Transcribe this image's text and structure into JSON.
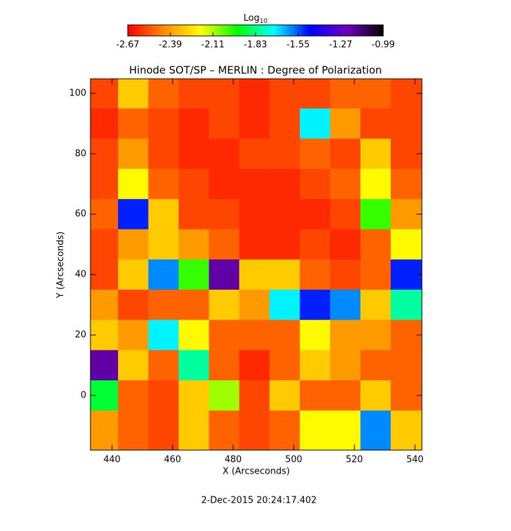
{
  "chart_data": {
    "type": "heatmap",
    "title": "Hinode SOT/SP – MERLIN : Degree of Polarization",
    "xlabel": "X (Arcseconds)",
    "ylabel": "Y (Arcseconds)",
    "footer": "2-Dec-2015 20:24:17.402",
    "colorbar_label": "Log",
    "colorbar_label_sub": "10",
    "colorbar_lim": [
      -2.67,
      -0.99
    ],
    "colorbar_ticks": [
      -2.67,
      -2.39,
      -2.11,
      -1.83,
      -1.55,
      -1.27,
      -0.99
    ],
    "colormap": [
      "#ff0000",
      "#ff8c00",
      "#ffff00",
      "#00ff00",
      "#00ffff",
      "#0000ff",
      "#7000c0",
      "#000000"
    ],
    "xlim": [
      432.9,
      542.3
    ],
    "ylim": [
      -18.1,
      104.8
    ],
    "xticks": [
      440,
      460,
      480,
      500,
      520,
      540
    ],
    "yticks": [
      0,
      20,
      40,
      60,
      80,
      100
    ],
    "x": [
      437,
      447,
      457,
      467,
      477,
      487,
      497,
      507,
      517,
      527,
      537
    ],
    "y": [
      100,
      90,
      80,
      70,
      60,
      50,
      40,
      30,
      20,
      10,
      0,
      -10
    ],
    "z": [
      [
        -2.55,
        -2.3,
        -2.5,
        -2.55,
        -2.55,
        -2.6,
        -2.55,
        -2.55,
        -2.5,
        -2.5,
        -2.55
      ],
      [
        -2.6,
        -2.5,
        -2.55,
        -2.6,
        -2.55,
        -2.6,
        -2.55,
        -1.7,
        -2.4,
        -2.55,
        -2.55
      ],
      [
        -2.55,
        -2.4,
        -2.55,
        -2.6,
        -2.6,
        -2.55,
        -2.55,
        -2.5,
        -2.55,
        -2.3,
        -2.55
      ],
      [
        -2.55,
        -2.2,
        -2.5,
        -2.55,
        -2.6,
        -2.6,
        -2.6,
        -2.55,
        -2.5,
        -2.2,
        -2.5
      ],
      [
        -2.5,
        -1.5,
        -2.3,
        -2.55,
        -2.55,
        -2.6,
        -2.6,
        -2.6,
        -2.55,
        -2.0,
        -2.4
      ],
      [
        -2.55,
        -2.4,
        -2.3,
        -2.4,
        -2.5,
        -2.6,
        -2.6,
        -2.55,
        -2.6,
        -2.5,
        -2.2
      ],
      [
        -2.55,
        -2.3,
        -1.6,
        -2.0,
        -1.2,
        -2.3,
        -2.3,
        -2.5,
        -2.55,
        -2.5,
        -1.5
      ],
      [
        -2.4,
        -2.55,
        -2.5,
        -2.5,
        -2.3,
        -2.4,
        -1.7,
        -1.5,
        -1.6,
        -2.3,
        -1.8
      ],
      [
        -2.3,
        -2.4,
        -1.7,
        -2.2,
        -2.5,
        -2.5,
        -2.5,
        -2.2,
        -2.4,
        -2.4,
        -2.5
      ],
      [
        -1.2,
        -2.3,
        -2.5,
        -1.8,
        -2.5,
        -2.6,
        -2.5,
        -2.3,
        -2.4,
        -2.5,
        -2.5
      ],
      [
        -1.9,
        -2.5,
        -2.55,
        -2.3,
        -2.1,
        -2.55,
        -2.3,
        -2.5,
        -2.5,
        -2.3,
        -2.5
      ],
      [
        -2.4,
        -2.5,
        -2.55,
        -2.3,
        -2.5,
        -2.55,
        -2.5,
        -2.2,
        -2.2,
        -1.6,
        -2.3
      ]
    ]
  }
}
